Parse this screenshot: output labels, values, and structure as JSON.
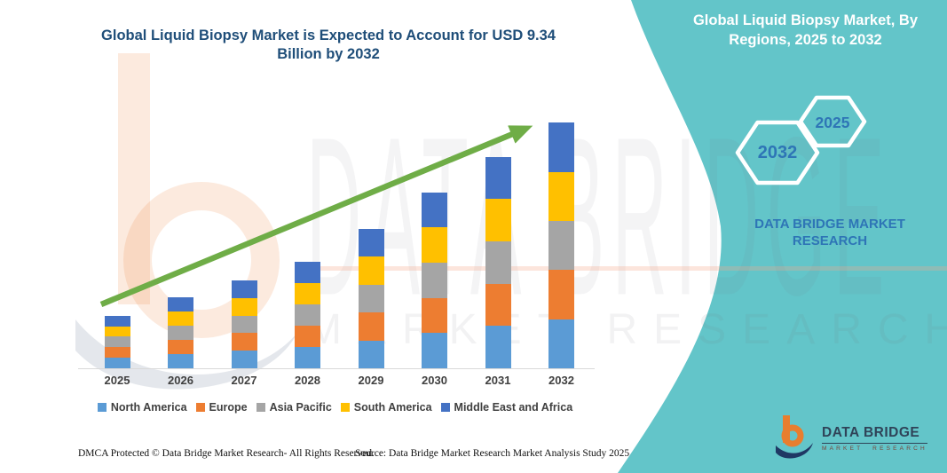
{
  "side_panel": {
    "title": "Global Liquid Biopsy Market, By\nRegions, 2025 to 2032",
    "bg_color": "#63C5C9",
    "hexagons": [
      {
        "label": "2032"
      },
      {
        "label": "2025"
      }
    ],
    "brand_text": "DATA BRIDGE MARKET\nRESEARCH",
    "brand_text_color": "#2E75B6"
  },
  "logo": {
    "name_text": "DATA BRIDGE",
    "subtitle_text": "MARKET RESEARCH",
    "orange": "#E87E2E",
    "navy": "#1F3864"
  },
  "watermark": {
    "big_text": "DATA BRIDGE",
    "sub_text": "MARKET RESEARCH"
  },
  "footer": {
    "left_text": "DMCA Protected © Data Bridge Market Research-  All Rights Reserved.",
    "source_text": "Source: Data Bridge Market Research  Market Analysis Study 2025"
  },
  "chart_data": {
    "type": "bar",
    "stacked": true,
    "title": "Global Liquid Biopsy Market is Expected to Account for USD 9.34\nBillion by 2032",
    "title_color": "#1F4E79",
    "categories": [
      "2025",
      "2026",
      "2027",
      "2028",
      "2029",
      "2030",
      "2031",
      "2032"
    ],
    "series": [
      {
        "name": "North America",
        "color": "#5B9BD5",
        "values": [
          0.4,
          0.54,
          0.67,
          0.81,
          1.06,
          1.34,
          1.61,
          1.87
        ]
      },
      {
        "name": "Europe",
        "color": "#ED7D31",
        "values": [
          0.4,
          0.54,
          0.67,
          0.81,
          1.06,
          1.34,
          1.61,
          1.87
        ]
      },
      {
        "name": "Asia Pacific",
        "color": "#A5A5A5",
        "values": [
          0.4,
          0.54,
          0.67,
          0.81,
          1.06,
          1.34,
          1.61,
          1.87
        ]
      },
      {
        "name": "South America",
        "color": "#FFC000",
        "values": [
          0.4,
          0.54,
          0.67,
          0.81,
          1.06,
          1.34,
          1.61,
          1.87
        ]
      },
      {
        "name": "Middle East and Africa",
        "color": "#4472C4",
        "values": [
          0.4,
          0.54,
          0.67,
          0.81,
          1.06,
          1.34,
          1.61,
          1.87
        ]
      }
    ],
    "totals_estimated_usd_billion": [
      2.0,
      2.7,
      3.35,
      4.05,
      5.3,
      6.7,
      8.05,
      9.34
    ],
    "units": "USD billion (estimated from bar heights)",
    "xlabel": "",
    "ylabel": "",
    "y_axis_shown": false,
    "gridlines": false,
    "legend_position": "bottom",
    "trend_arrow": true,
    "trend_arrow_color": "#6FAD47"
  }
}
